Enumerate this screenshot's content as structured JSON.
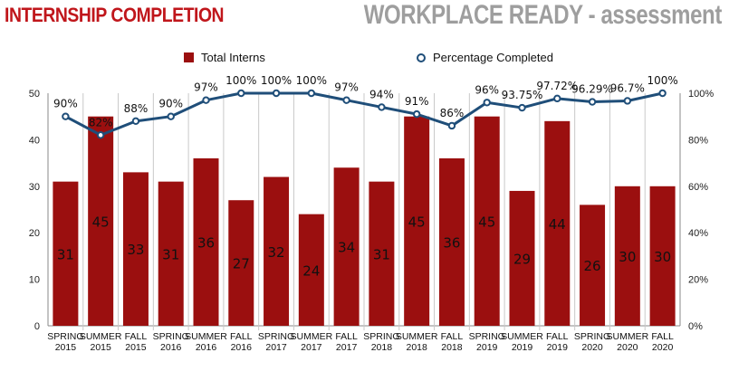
{
  "header": {
    "title": "INTERNSHIP COMPLETION",
    "subtitle": "WORKPLACE READY - assessment"
  },
  "legend": {
    "bars_label": "Total Interns",
    "line_label": "Percentage Completed"
  },
  "colors": {
    "bar": "#9b0f0f",
    "line": "#1f4e79",
    "title_red": "#c0161b",
    "title_gray": "#9e9e9e"
  },
  "chart_data": {
    "type": "bar",
    "categories": [
      [
        "SPRING",
        "2015"
      ],
      [
        "SUMMER",
        "2015"
      ],
      [
        "FALL",
        "2015"
      ],
      [
        "SPRING",
        "2016"
      ],
      [
        "SUMMER",
        "2016"
      ],
      [
        "FALL",
        "2016"
      ],
      [
        "SPRING",
        "2017"
      ],
      [
        "SUMMER",
        "2017"
      ],
      [
        "FALL",
        "2017"
      ],
      [
        "SPRING",
        "2018"
      ],
      [
        "SUMMER",
        "2018"
      ],
      [
        "FALL",
        "2018"
      ],
      [
        "SPRING",
        "2019"
      ],
      [
        "SUMMER",
        "2019"
      ],
      [
        "FALL",
        "2019"
      ],
      [
        "SPRING",
        "2020"
      ],
      [
        "SUMMER",
        "2020"
      ],
      [
        "FALL",
        "2020"
      ]
    ],
    "series": [
      {
        "name": "Total Interns",
        "type": "bar",
        "axis": "left",
        "values": [
          31,
          45,
          33,
          31,
          36,
          27,
          32,
          24,
          34,
          31,
          45,
          36,
          45,
          29,
          44,
          26,
          30,
          30
        ]
      },
      {
        "name": "Percentage Completed",
        "type": "line",
        "axis": "right",
        "values": [
          90,
          82,
          88,
          90,
          97,
          100,
          100,
          100,
          97,
          94,
          91,
          86,
          96,
          93.75,
          97.72,
          96.29,
          96.7,
          100
        ],
        "labels": [
          "90%",
          "82%",
          "88%",
          "90%",
          "97%",
          "100%",
          "100%",
          "100%",
          "97%",
          "94%",
          "91%",
          "86%",
          "96%",
          "93.75%",
          "97.72%",
          "96.29%",
          "96.7%",
          "100%"
        ]
      }
    ],
    "ylim": [
      0,
      50
    ],
    "yticks": [
      0,
      10,
      20,
      30,
      40,
      50
    ],
    "y2lim": [
      0,
      100
    ],
    "y2ticks": [
      "0%",
      "20%",
      "40%",
      "60%",
      "80%",
      "100%"
    ],
    "legend_position": "top-center",
    "grid": false
  }
}
